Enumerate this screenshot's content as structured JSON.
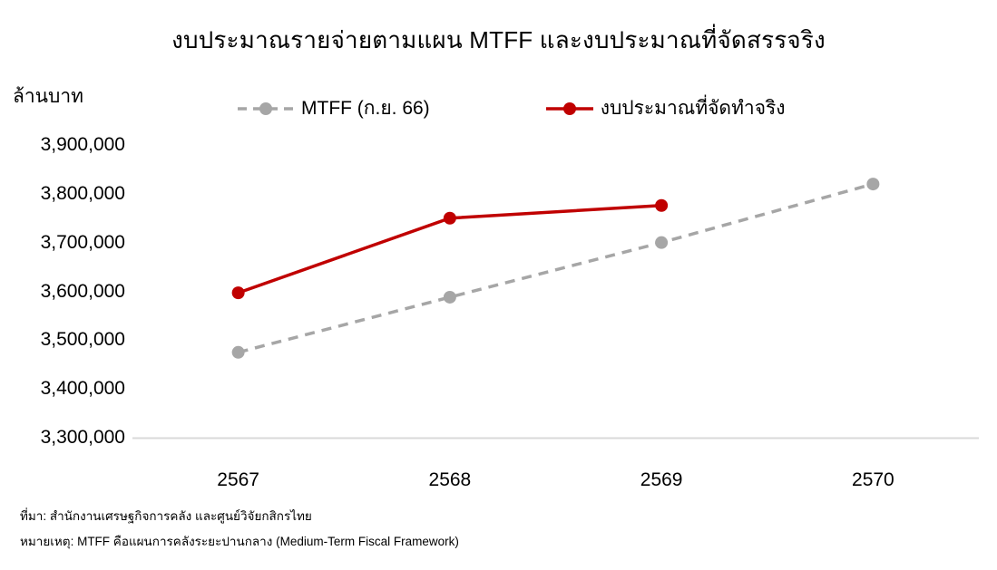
{
  "title": "งบประมาณรายจ่ายตามแผน MTFF และงบประมาณที่จัดสรรจริง",
  "y_unit_label": "ล้านบาท",
  "legend": {
    "mtff_label": "MTFF (ก.ย. 66)",
    "actual_label": "งบประมาณที่จัดทำจริง"
  },
  "notes": {
    "source": "ที่มา: สำนักงานเศรษฐกิจการคลัง และศูนย์วิจัยกสิกรไทย",
    "footnote": "หมายเหตุ: MTFF คือแผนการคลังระยะปานกลาง (Medium-Term Fiscal Framework)"
  },
  "colors": {
    "mtff": "#A6A6A6",
    "actual": "#C00000",
    "axis_line": "#D9D9D9",
    "text": "#000000"
  },
  "chart_data": {
    "type": "line",
    "title": "งบประมาณรายจ่ายตามแผน MTFF และงบประมาณที่จัดสรรจริง",
    "categories": [
      "2567",
      "2568",
      "2569",
      "2570"
    ],
    "series": [
      {
        "name": "MTFF (ก.ย. 66)",
        "color": "#A6A6A6",
        "style": "dashed",
        "marker": "circle",
        "values": [
          3475000,
          3588000,
          3700000,
          3820000
        ]
      },
      {
        "name": "งบประมาณที่จัดทำจริง",
        "color": "#C00000",
        "style": "solid",
        "marker": "circle",
        "values": [
          3597000,
          3750000,
          3776000
        ]
      }
    ],
    "xlabel": "",
    "ylabel": "ล้านบาท",
    "ylim": [
      3300000,
      3900000
    ],
    "ytick_step": 100000,
    "grid": false,
    "legend_position": "top"
  }
}
